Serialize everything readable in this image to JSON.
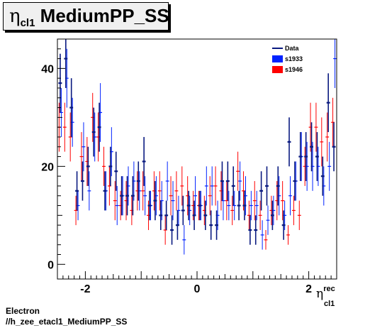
{
  "title": {
    "symbol": "η",
    "subscript": "cl1",
    "text": " MediumPP_SS"
  },
  "footer": {
    "line1": "Electron",
    "line2": "//h_zee_etacl1_MediumPP_SS"
  },
  "x_axis": {
    "symbol": "η",
    "superscript": "rec",
    "subscript": "cl1"
  },
  "legend": [
    "Data",
    "s1933",
    "s1946"
  ],
  "colors": {
    "Data": "#0a1a80",
    "s1933": "#0022ff",
    "s1946": "#ff0000"
  },
  "chart_data": {
    "type": "scatter",
    "xlim": [
      -2.5,
      2.5
    ],
    "ylim": [
      -3,
      46
    ],
    "x_ticks": [
      -2,
      0,
      2
    ],
    "y_ticks": [
      0,
      20,
      40
    ],
    "grid": false,
    "legend_position": "top-right",
    "series": [
      {
        "name": "Data",
        "bin_width": 0.1,
        "x": [
          -2.45,
          -2.35,
          -2.25,
          -2.15,
          -2.05,
          -1.95,
          -1.85,
          -1.75,
          -1.65,
          -1.55,
          -1.45,
          -1.35,
          -1.25,
          -1.15,
          -1.05,
          -0.95,
          -0.85,
          -0.75,
          -0.65,
          -0.55,
          -0.45,
          -0.35,
          -0.25,
          -0.15,
          -0.05,
          0.05,
          0.15,
          0.25,
          0.35,
          0.45,
          0.55,
          0.65,
          0.75,
          0.85,
          0.95,
          1.05,
          1.15,
          1.25,
          1.35,
          1.45,
          1.55,
          1.65,
          1.75,
          1.85,
          1.95,
          2.05,
          2.15,
          2.25,
          2.35,
          2.45
        ],
        "y": [
          37,
          42,
          32,
          15,
          17,
          20,
          27,
          28,
          15,
          20,
          19,
          14,
          14,
          14,
          17,
          21,
          12,
          13,
          10,
          10,
          7,
          8,
          11,
          12,
          10,
          12,
          10,
          8,
          8,
          17,
          17,
          16,
          12,
          12,
          7,
          7,
          15,
          16,
          10,
          16,
          8,
          25,
          17,
          22,
          22,
          24,
          22,
          18,
          33,
          24
        ],
        "err": [
          6,
          6,
          6,
          4,
          4,
          4,
          5,
          5,
          4,
          4,
          4,
          4,
          4,
          4,
          4,
          5,
          3,
          4,
          3,
          3,
          3,
          3,
          3,
          3,
          3,
          3,
          3,
          3,
          3,
          4,
          4,
          4,
          3,
          3,
          3,
          3,
          4,
          4,
          3,
          4,
          3,
          5,
          4,
          5,
          5,
          5,
          5,
          4,
          6,
          5
        ]
      },
      {
        "name": "s1933",
        "bin_width": 0.1,
        "x": [
          -2.45,
          -2.35,
          -2.25,
          -2.15,
          -2.05,
          -1.95,
          -1.85,
          -1.75,
          -1.65,
          -1.55,
          -1.45,
          -1.35,
          -1.25,
          -1.15,
          -1.05,
          -0.95,
          -0.85,
          -0.75,
          -0.65,
          -0.55,
          -0.45,
          -0.35,
          -0.25,
          -0.15,
          -0.05,
          0.05,
          0.15,
          0.25,
          0.35,
          0.45,
          0.55,
          0.65,
          0.75,
          0.85,
          0.95,
          1.05,
          1.15,
          1.25,
          1.35,
          1.45,
          1.55,
          1.65,
          1.75,
          1.85,
          1.95,
          2.05,
          2.15,
          2.25,
          2.35,
          2.45
        ],
        "y": [
          31,
          38,
          29,
          12,
          24,
          15,
          26,
          31,
          15,
          23,
          12,
          14,
          16,
          17,
          15,
          14,
          12,
          14,
          13,
          17,
          13,
          11,
          5,
          11,
          14,
          12,
          16,
          16,
          10,
          13,
          12,
          12,
          17,
          14,
          12,
          12,
          6,
          9,
          11,
          14,
          10,
          14,
          17,
          22,
          20,
          20,
          20,
          16,
          20,
          42
        ],
        "err": [
          5,
          6,
          5,
          3,
          5,
          4,
          5,
          6,
          4,
          5,
          4,
          4,
          4,
          4,
          4,
          4,
          3,
          4,
          4,
          4,
          4,
          3,
          3,
          3,
          4,
          3,
          4,
          4,
          3,
          4,
          3,
          3,
          4,
          4,
          3,
          3,
          3,
          3,
          3,
          4,
          3,
          4,
          4,
          5,
          5,
          5,
          4,
          4,
          5,
          6
        ]
      },
      {
        "name": "s1946",
        "bin_width": 0.1,
        "x": [
          -2.45,
          -2.35,
          -2.25,
          -2.15,
          -2.05,
          -1.95,
          -1.85,
          -1.75,
          -1.65,
          -1.55,
          -1.45,
          -1.35,
          -1.25,
          -1.15,
          -1.05,
          -0.95,
          -0.85,
          -0.75,
          -0.65,
          -0.55,
          -0.45,
          -0.35,
          -0.25,
          -0.15,
          -0.05,
          0.05,
          0.15,
          0.25,
          0.35,
          0.45,
          0.55,
          0.65,
          0.75,
          0.85,
          0.95,
          1.05,
          1.15,
          1.25,
          1.35,
          1.45,
          1.55,
          1.65,
          1.75,
          1.85,
          1.95,
          2.05,
          2.15,
          2.25,
          2.35,
          2.45
        ],
        "y": [
          28,
          28,
          26,
          11,
          22,
          21,
          30,
          26,
          20,
          16,
          13,
          12,
          13,
          11,
          15,
          15,
          10,
          15,
          15,
          7,
          14,
          15,
          16,
          14,
          12,
          12,
          11,
          14,
          16,
          15,
          13,
          11,
          19,
          15,
          10,
          13,
          10,
          5,
          11,
          13,
          13,
          6,
          11,
          10,
          20,
          28,
          28,
          25,
          26,
          29
        ],
        "err": [
          5,
          5,
          5,
          3,
          5,
          5,
          5,
          5,
          4,
          4,
          4,
          3,
          4,
          3,
          4,
          4,
          3,
          4,
          4,
          3,
          4,
          4,
          4,
          4,
          3,
          3,
          3,
          4,
          4,
          4,
          4,
          3,
          4,
          4,
          3,
          4,
          3,
          2,
          3,
          4,
          4,
          2,
          3,
          3,
          4,
          5,
          5,
          5,
          5,
          5
        ]
      }
    ]
  }
}
